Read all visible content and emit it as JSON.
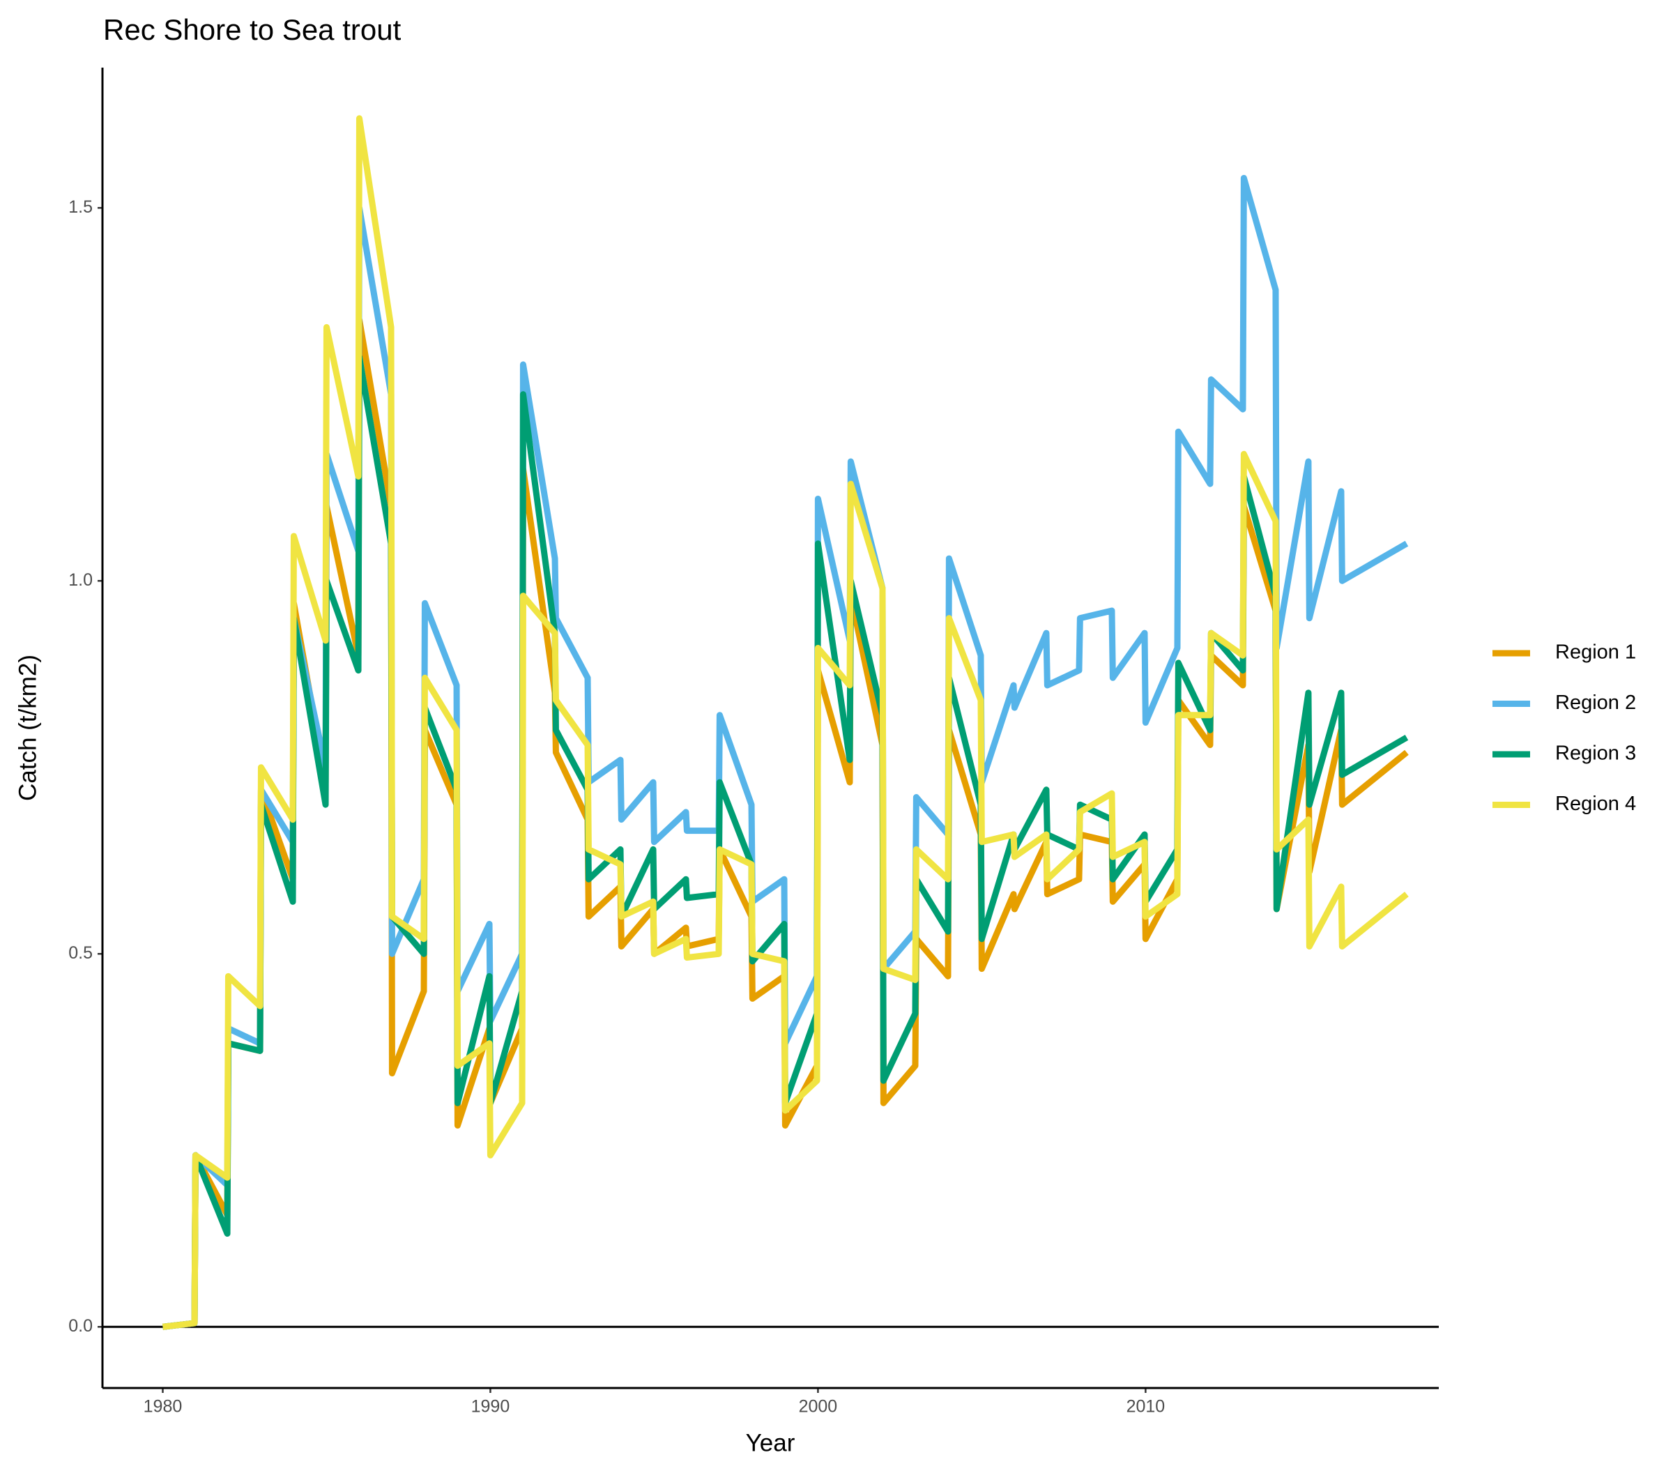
{
  "chart_data": {
    "type": "line",
    "title": "Rec Shore to Sea trout",
    "x_label": "Year",
    "y_label": "Catch (t/km2)",
    "x": [
      1980,
      1980.97,
      1981,
      1981.97,
      1982,
      1982.97,
      1983,
      1983.97,
      1984,
      1984.97,
      1985,
      1985.97,
      1986,
      1986.97,
      1987,
      1987.97,
      1988,
      1988.97,
      1989,
      1989.97,
      1990,
      1990.97,
      1991,
      1991.97,
      1992,
      1992.97,
      1993,
      1993.97,
      1994,
      1994.97,
      1995,
      1995.97,
      1996,
      1996.97,
      1997,
      1997.97,
      1998,
      1998.97,
      1999,
      1999.97,
      2000,
      2000.97,
      2001,
      2001.97,
      2002,
      2002.97,
      2003,
      2003.97,
      2004,
      2004.97,
      2005,
      2005.97,
      2006,
      2006.97,
      2007,
      2007.97,
      2008,
      2008.97,
      2009,
      2009.97,
      2010,
      2010.97,
      2011,
      2011.97,
      2012,
      2012.97,
      2013,
      2013.97,
      2014,
      2014.97,
      2015,
      2015.97,
      2016,
      2017.97
    ],
    "series": [
      {
        "name": "Region 1",
        "color": "#E69F00",
        "values": [
          0,
          0.005,
          0.23,
          0.15,
          0.38,
          0.37,
          0.72,
          0.6,
          0.97,
          0.73,
          1.1,
          0.9,
          1.35,
          1.1,
          0.34,
          0.45,
          0.8,
          0.7,
          0.27,
          0.4,
          0.3,
          0.4,
          1.15,
          0.85,
          0.77,
          0.68,
          0.55,
          0.59,
          0.51,
          0.56,
          0.5,
          0.535,
          0.51,
          0.52,
          0.64,
          0.55,
          0.44,
          0.47,
          0.27,
          0.35,
          0.88,
          0.73,
          0.98,
          0.78,
          0.3,
          0.35,
          0.52,
          0.47,
          0.8,
          0.66,
          0.48,
          0.58,
          0.56,
          0.65,
          0.58,
          0.6,
          0.66,
          0.65,
          0.57,
          0.62,
          0.52,
          0.6,
          0.84,
          0.78,
          0.9,
          0.86,
          1.1,
          0.96,
          0.56,
          0.78,
          0.61,
          0.8,
          0.7,
          0.77
        ]
      },
      {
        "name": "Region 2",
        "color": "#56B4E9",
        "values": [
          0,
          0.005,
          0.23,
          0.19,
          0.4,
          0.38,
          0.72,
          0.65,
          0.95,
          0.75,
          1.17,
          1.04,
          1.5,
          1.25,
          0.5,
          0.6,
          0.97,
          0.86,
          0.45,
          0.54,
          0.41,
          0.5,
          1.29,
          1.03,
          0.95,
          0.87,
          0.73,
          0.76,
          0.68,
          0.73,
          0.65,
          0.69,
          0.665,
          0.665,
          0.82,
          0.7,
          0.57,
          0.6,
          0.38,
          0.47,
          1.11,
          0.92,
          1.16,
          0.99,
          0.48,
          0.53,
          0.71,
          0.66,
          1.03,
          0.9,
          0.73,
          0.86,
          0.83,
          0.93,
          0.86,
          0.88,
          0.95,
          0.96,
          0.87,
          0.93,
          0.81,
          0.91,
          1.2,
          1.13,
          1.27,
          1.23,
          1.54,
          1.39,
          0.91,
          1.16,
          0.95,
          1.12,
          1.0,
          1.05
        ]
      },
      {
        "name": "Region 3",
        "color": "#009E73",
        "values": [
          0,
          0.005,
          0.23,
          0.125,
          0.38,
          0.37,
          0.7,
          0.57,
          0.95,
          0.7,
          1.0,
          0.88,
          1.3,
          1.05,
          0.55,
          0.5,
          0.83,
          0.72,
          0.3,
          0.47,
          0.3,
          0.45,
          1.25,
          0.93,
          0.8,
          0.72,
          0.6,
          0.64,
          0.55,
          0.64,
          0.56,
          0.6,
          0.575,
          0.58,
          0.73,
          0.62,
          0.49,
          0.54,
          0.3,
          0.42,
          1.05,
          0.76,
          1.0,
          0.82,
          0.33,
          0.42,
          0.6,
          0.53,
          0.87,
          0.7,
          0.52,
          0.66,
          0.64,
          0.72,
          0.66,
          0.64,
          0.7,
          0.68,
          0.6,
          0.66,
          0.57,
          0.64,
          0.89,
          0.8,
          0.93,
          0.88,
          1.14,
          0.98,
          0.56,
          0.85,
          0.7,
          0.85,
          0.74,
          0.79
        ]
      },
      {
        "name": "Region 4",
        "color": "#F0E442",
        "values": [
          0,
          0.005,
          0.23,
          0.2,
          0.47,
          0.43,
          0.75,
          0.68,
          1.06,
          0.92,
          1.34,
          1.14,
          1.62,
          1.34,
          0.55,
          0.52,
          0.87,
          0.8,
          0.35,
          0.38,
          0.23,
          0.3,
          0.98,
          0.93,
          0.84,
          0.78,
          0.64,
          0.62,
          0.55,
          0.57,
          0.5,
          0.52,
          0.495,
          0.5,
          0.64,
          0.62,
          0.5,
          0.49,
          0.29,
          0.33,
          0.91,
          0.86,
          1.13,
          0.99,
          0.48,
          0.465,
          0.64,
          0.6,
          0.95,
          0.84,
          0.65,
          0.66,
          0.63,
          0.66,
          0.6,
          0.64,
          0.69,
          0.715,
          0.63,
          0.65,
          0.55,
          0.58,
          0.82,
          0.82,
          0.93,
          0.9,
          1.17,
          1.08,
          0.64,
          0.68,
          0.51,
          0.59,
          0.51,
          0.58
        ]
      }
    ],
    "xlim": [
      1978.16,
      2018.95
    ],
    "ylim": [
      -0.082,
      1.688
    ],
    "xticks": [
      1980,
      1990,
      2000,
      2010
    ],
    "yticks": [
      {
        "value": 0,
        "label": "0.0"
      },
      {
        "value": 0.5,
        "label": "0.5"
      },
      {
        "value": 1,
        "label": "1.0"
      },
      {
        "value": 1.5,
        "label": "1.5"
      }
    ],
    "hline": 0,
    "grid": false,
    "legend": "right"
  }
}
